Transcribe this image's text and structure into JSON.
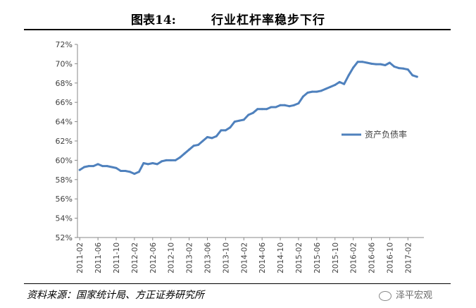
{
  "figure": {
    "number": "图表14:",
    "title": "行业杠杆率稳步下行"
  },
  "source": "资料来源：国家统计局、方正证券研究所",
  "watermark": "泽平宏观",
  "colors": {
    "series": "#4f81bd",
    "axis": "#888888",
    "text": "#404040"
  },
  "chart_data": {
    "type": "line",
    "title": "",
    "xlabel": "",
    "ylabel": "",
    "ylim": [
      52,
      72
    ],
    "y_ticks": [
      "52%",
      "54%",
      "56%",
      "58%",
      "60%",
      "62%",
      "64%",
      "66%",
      "68%",
      "70%",
      "72%"
    ],
    "x_tick_labels": [
      "2011-02",
      "2011-06",
      "2011-10",
      "2012-02",
      "2012-06",
      "2012-10",
      "2013-02",
      "2013-06",
      "2013-10",
      "2014-02",
      "2014-06",
      "2014-10",
      "2015-02",
      "2015-06",
      "2015-10",
      "2016-02",
      "2016-06",
      "2016-10",
      "2017-02"
    ],
    "grid": false,
    "legend_position": "right",
    "series": [
      {
        "name": "资产负债率",
        "x": [
          "2011-02",
          "2011-03",
          "2011-04",
          "2011-05",
          "2011-06",
          "2011-07",
          "2011-08",
          "2011-09",
          "2011-10",
          "2011-11",
          "2011-12",
          "2012-01",
          "2012-02",
          "2012-03",
          "2012-04",
          "2012-05",
          "2012-06",
          "2012-07",
          "2012-08",
          "2012-09",
          "2012-10",
          "2012-11",
          "2012-12",
          "2013-01",
          "2013-02",
          "2013-03",
          "2013-04",
          "2013-05",
          "2013-06",
          "2013-07",
          "2013-08",
          "2013-09",
          "2013-10",
          "2013-11",
          "2013-12",
          "2014-01",
          "2014-02",
          "2014-03",
          "2014-04",
          "2014-05",
          "2014-06",
          "2014-07",
          "2014-08",
          "2014-09",
          "2014-10",
          "2014-11",
          "2014-12",
          "2015-01",
          "2015-02",
          "2015-03",
          "2015-04",
          "2015-05",
          "2015-06",
          "2015-07",
          "2015-08",
          "2015-09",
          "2015-10",
          "2015-11",
          "2015-12",
          "2016-01",
          "2016-02",
          "2016-03",
          "2016-04",
          "2016-05",
          "2016-06",
          "2016-07",
          "2016-08",
          "2016-09",
          "2016-10",
          "2016-11",
          "2016-12",
          "2017-01",
          "2017-02",
          "2017-03",
          "2017-04"
        ],
        "values": [
          59.0,
          59.3,
          59.4,
          59.4,
          59.6,
          59.4,
          59.4,
          59.3,
          59.2,
          58.9,
          58.9,
          58.8,
          58.6,
          58.8,
          59.7,
          59.6,
          59.7,
          59.6,
          59.9,
          60.0,
          60.0,
          60.0,
          60.3,
          60.7,
          61.1,
          61.5,
          61.6,
          62.0,
          62.4,
          62.3,
          62.5,
          63.1,
          63.1,
          63.4,
          64.0,
          64.1,
          64.2,
          64.7,
          64.9,
          65.3,
          65.3,
          65.3,
          65.5,
          65.5,
          65.7,
          65.7,
          65.6,
          65.7,
          65.9,
          66.6,
          67.0,
          67.1,
          67.1,
          67.2,
          67.4,
          67.6,
          67.8,
          68.1,
          67.9,
          68.8,
          69.6,
          70.2,
          70.2,
          70.1,
          70.0,
          69.95,
          69.95,
          69.85,
          70.1,
          69.7,
          69.55,
          69.5,
          69.4,
          68.8,
          68.65
        ]
      }
    ]
  }
}
